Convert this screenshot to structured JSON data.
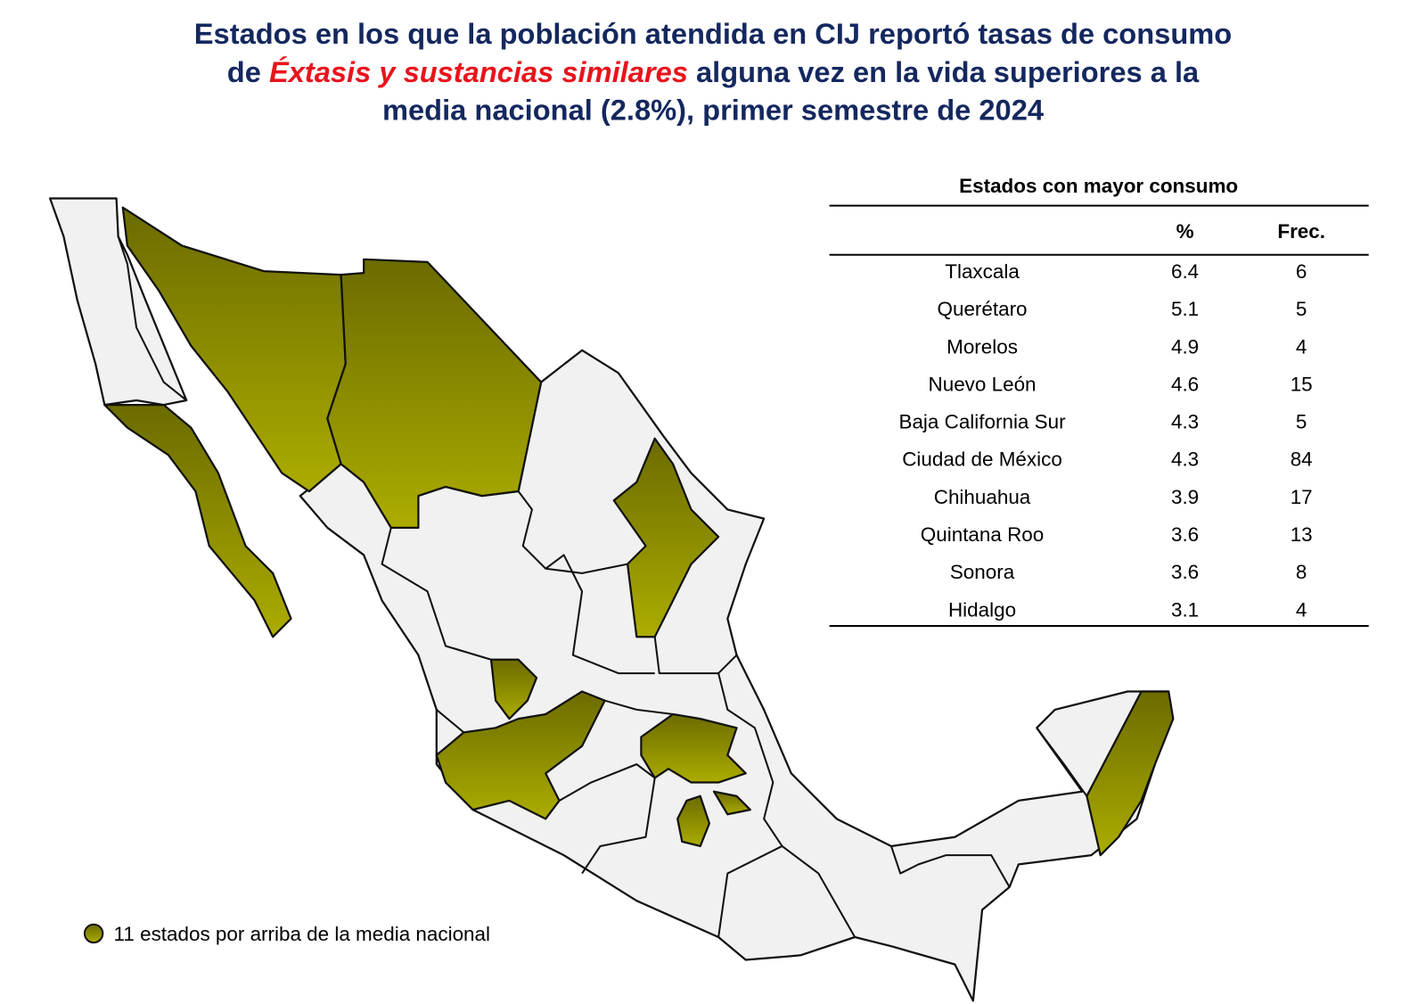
{
  "title": {
    "line1": "Estados en los que la población atendida en CIJ reportó tasas de consumo",
    "line2_start": "de",
    "highlight": "Éxtasis y sustancias similares",
    "line2_end": "alguna vez en la vida superiores a la",
    "line3": "media nacional (2.8%), primer semestre de 2024"
  },
  "table": {
    "title": "Estados con mayor consumo",
    "headers": [
      "%",
      "Frec."
    ],
    "rows": [
      [
        "Tlaxcala",
        6.4,
        6
      ],
      [
        "Querétaro",
        5.1,
        5
      ],
      [
        "Morelos",
        4.9,
        4
      ],
      [
        "Nuevo León",
        4.6,
        15
      ],
      [
        "Baja California Sur",
        4.3,
        5
      ],
      [
        "Ciudad de México",
        4.3,
        84
      ],
      [
        "Chihuahua",
        3.9,
        17
      ],
      [
        "Quintana Roo",
        3.6,
        13
      ],
      [
        "Sonora",
        3.6,
        8
      ],
      [
        "Hidalgo",
        3.1,
        4
      ]
    ]
  },
  "legend": {
    "label": "11 estados por arriba de la media nacional"
  }
}
